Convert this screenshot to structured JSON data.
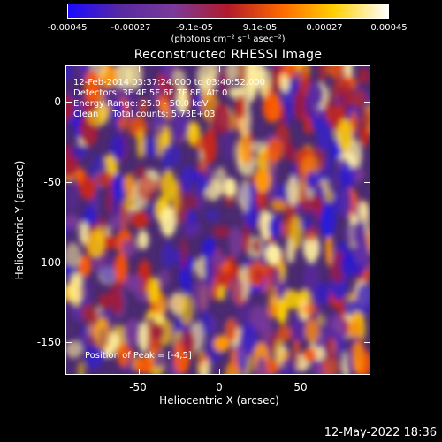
{
  "colorbar": {
    "tick_labels": [
      "-0.00045",
      "-0.00027",
      "-9.1e-05",
      "9.1e-05",
      "0.00027",
      "0.00045"
    ],
    "units": "(photons cm⁻² s⁻¹ asec⁻²)",
    "colors": [
      "#1a0aff",
      "#5a2aa0",
      "#7a3a9a",
      "#b21a2a",
      "#ff6a00",
      "#ffd000",
      "#ffffff"
    ]
  },
  "title": "Reconstructed RHESSI Image",
  "annotations": {
    "time_range": "12-Feb-2014 03:37:24.000 to 03:40:52.000",
    "detectors": "Detectors: 3F 4F 5F 6F 7F 8F, Att 0",
    "energy": "Energy Range: 25.0 - 50.0 keV",
    "method": "Clean     Total counts: 5.73E+03",
    "peak": "Position of Peak = [-4,5]"
  },
  "axes": {
    "y_ticks": [
      "0",
      "-50",
      "-100",
      "-150"
    ],
    "x_ticks": [
      "-50",
      "0",
      "50"
    ],
    "xlabel": "Heliocentric X (arcsec)",
    "ylabel": "Heliocentric Y (arcsec)"
  },
  "footer": {
    "timestamp": "12-May-2022 18:36"
  }
}
